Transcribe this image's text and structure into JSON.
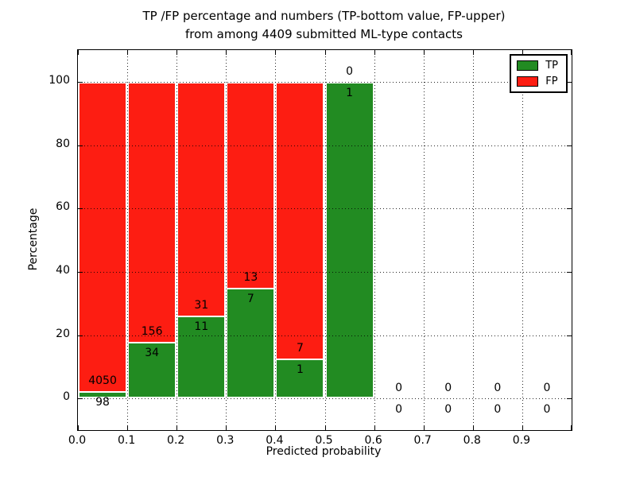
{
  "chart_data": {
    "type": "bar",
    "stacked": true,
    "normalized_to_percent": true,
    "title_line1": "TP /FP percentage and numbers (TP-bottom value, FP-upper)",
    "title_line2": "from among 4409 submitted ML-type contacts",
    "xlabel": "Predicted probability",
    "ylabel": "Percentage",
    "x_tick_labels": [
      "0.0",
      "0.1",
      "0.2",
      "0.3",
      "0.4",
      "0.5",
      "0.6",
      "0.7",
      "0.8",
      "0.9"
    ],
    "x_tick_values": [
      0.0,
      0.1,
      0.2,
      0.3,
      0.4,
      0.5,
      0.6,
      0.7,
      0.8,
      0.9
    ],
    "y_ticks": [
      0,
      20,
      40,
      60,
      80,
      100
    ],
    "xlim": [
      0.0,
      1.0
    ],
    "ylim": [
      -10,
      110
    ],
    "grid": "dotted both axes, drawn over bars",
    "legend": {
      "position": "upper right",
      "entries": [
        {
          "label": "TP",
          "color": "#228b22"
        },
        {
          "label": "FP",
          "color": "#fd1d12"
        }
      ]
    },
    "colors": {
      "tp_green": "#228b22",
      "fp_red": "#fd1d12",
      "bar_edge": "#ffffff"
    },
    "bins": [
      {
        "x_start": 0.0,
        "x_end": 0.1,
        "tp": 98,
        "fp": 4050
      },
      {
        "x_start": 0.1,
        "x_end": 0.2,
        "tp": 34,
        "fp": 156
      },
      {
        "x_start": 0.2,
        "x_end": 0.3,
        "tp": 11,
        "fp": 31
      },
      {
        "x_start": 0.3,
        "x_end": 0.4,
        "tp": 7,
        "fp": 13
      },
      {
        "x_start": 0.4,
        "x_end": 0.5,
        "tp": 1,
        "fp": 7
      },
      {
        "x_start": 0.5,
        "x_end": 0.6,
        "tp": 1,
        "fp": 0
      },
      {
        "x_start": 0.6,
        "x_end": 0.7,
        "tp": 0,
        "fp": 0
      },
      {
        "x_start": 0.7,
        "x_end": 0.8,
        "tp": 0,
        "fp": 0
      },
      {
        "x_start": 0.8,
        "x_end": 0.9,
        "tp": 0,
        "fp": 0
      },
      {
        "x_start": 0.9,
        "x_end": 1.0,
        "tp": 0,
        "fp": 0
      }
    ],
    "bar_label_rule": "FP count printed just above green/red boundary, TP count just below it"
  }
}
